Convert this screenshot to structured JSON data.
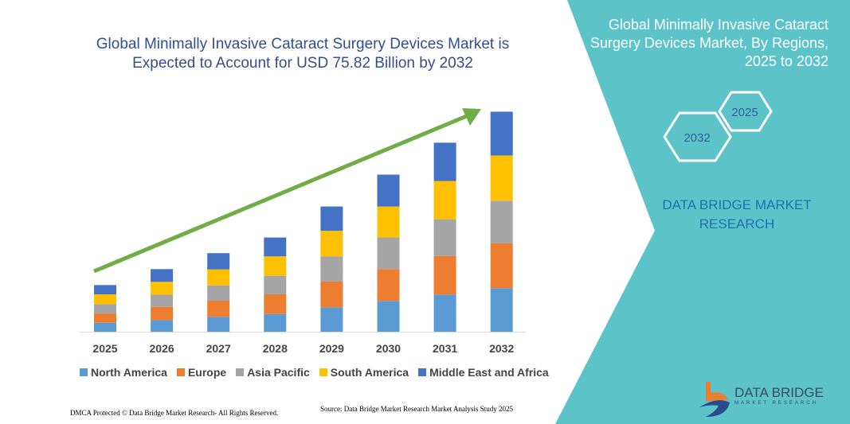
{
  "title": "Global Minimally Invasive Cataract Surgery Devices Market is Expected to Account for USD 75.82 Billion by 2032",
  "side_panel": {
    "title": "Global Minimally Invasive Cataract Surgery Devices Market, By Regions, 2025 to 2032",
    "hex_start": "2025",
    "hex_end": "2032",
    "brand": "DATA BRIDGE MARKET RESEARCH",
    "bg_color": "#5cc3c9"
  },
  "logo": {
    "name": "DATA BRIDGE",
    "sub": "MARKET RESEARCH"
  },
  "footer": {
    "dmca": "DMCA Protected © Data Bridge Market Research- All Rights Reserved.",
    "source": "Source: Data Bridge Market Research Market Analysis Study 2025"
  },
  "chart_data": {
    "type": "bar",
    "stacked": true,
    "categories": [
      "2025",
      "2026",
      "2027",
      "2028",
      "2029",
      "2030",
      "2031",
      "2032"
    ],
    "series": [
      {
        "name": "North America",
        "color": "#5b9bd5",
        "values": [
          3.1,
          4.0,
          5.1,
          6.1,
          8.4,
          10.6,
          12.8,
          15.0
        ]
      },
      {
        "name": "Europe",
        "color": "#ed7d31",
        "values": [
          3.2,
          4.6,
          5.6,
          6.8,
          8.9,
          11.0,
          13.3,
          15.5
        ]
      },
      {
        "name": "Asia Pacific",
        "color": "#a5a5a5",
        "values": [
          3.2,
          4.2,
          5.3,
          6.4,
          8.7,
          10.9,
          12.7,
          14.7
        ]
      },
      {
        "name": "South America",
        "color": "#ffc000",
        "values": [
          3.4,
          4.4,
          5.5,
          6.7,
          8.8,
          10.7,
          13.2,
          15.6
        ]
      },
      {
        "name": "Middle East and Africa",
        "color": "#4472c4",
        "values": [
          3.2,
          4.4,
          5.6,
          6.5,
          8.4,
          11.0,
          13.2,
          15.1
        ]
      }
    ],
    "ylim": [
      0,
      76
    ],
    "grid": false,
    "legend_placement": "bottom",
    "trend_arrow_color": "#70ad47"
  }
}
